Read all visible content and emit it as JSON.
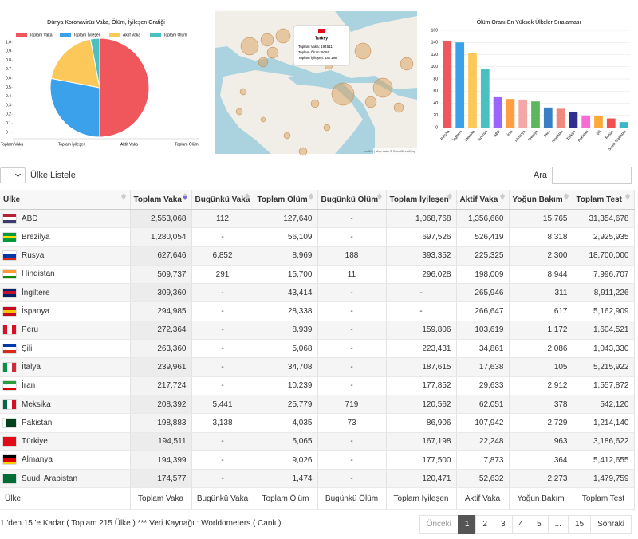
{
  "chart_data": [
    {
      "type": "pie",
      "title": "Dünya Koronavirüs Vaka, Ölüm, İyileşen Grafiği",
      "categories": [
        "Toplam Vaka",
        "Toplam İyileşen",
        "Aktif Vaka",
        "Toplam Ölüm"
      ],
      "values": [
        50,
        28,
        19,
        3
      ],
      "colors": [
        "#f0575c",
        "#3aa1ea",
        "#fdc85a",
        "#4bc0c0"
      ],
      "ylim": [
        0,
        1
      ],
      "yticks": [
        0,
        0.1,
        0.2,
        0.3,
        0.4,
        0.5,
        0.6,
        0.7,
        0.8,
        0.9,
        {
          "value": 1,
          "label": "1.0"
        }
      ]
    },
    {
      "type": "bar",
      "title": "Ölüm Oranı En Yüksek Ülkeler Sıralaması",
      "categories": [
        "Belçika",
        "İngiltere",
        "Meksika",
        "İspanya",
        "ABD",
        "İran",
        "Almanya",
        "Brezilya",
        "Peru",
        "Hindistan",
        "Türkiye",
        "Pakistan",
        "Şili",
        "Rusya",
        "Suudi Arabistan"
      ],
      "values": [
        143,
        140,
        123,
        96,
        50,
        47,
        46,
        43,
        33,
        31,
        26,
        20,
        19,
        15,
        9
      ],
      "colors": [
        "#f0575c",
        "#3aa1ea",
        "#fdc85a",
        "#4bc0c0",
        "#9966ff",
        "#ff9f40",
        "#f4a7a7",
        "#5cb85c",
        "#3a7fc1",
        "#f08a80",
        "#2e2f8f",
        "#f76dd7",
        "#ffa83a",
        "#f05050",
        "#3bb7c9"
      ],
      "ylim": [
        0,
        160
      ],
      "yticks": [
        0,
        20,
        40,
        60,
        80,
        100,
        120,
        140,
        160
      ],
      "grid": true
    }
  ],
  "map": {
    "popup": {
      "title": "Turkey",
      "lines": [
        "Toplam Vaka: 194511",
        "Toplam Ölüm: 5065",
        "Toplam İyileşen: 167198"
      ]
    },
    "attribution": "Leaflet | Map data © OpenStreetMap"
  },
  "controls": {
    "list_label": "Ülke Listele",
    "search_label": "Ara"
  },
  "table": {
    "headers": [
      "Ülke",
      "Toplam Vaka",
      "Bugünkü Vaka",
      "Toplam Ölüm",
      "Bugünkü Ölüm",
      "Toplam İyileşen",
      "Aktif Vaka",
      "Yoğun Bakım",
      "Toplam Test"
    ],
    "rows": [
      [
        "ABD",
        "2,553,068",
        "112",
        "127,640",
        "-",
        "1,068,768",
        "1,356,660",
        "15,765",
        "31,354,678"
      ],
      [
        "Brezilya",
        "1,280,054",
        "-",
        "56,109",
        "-",
        "697,526",
        "526,419",
        "8,318",
        "2,925,935"
      ],
      [
        "Rusya",
        "627,646",
        "6,852",
        "8,969",
        "188",
        "393,352",
        "225,325",
        "2,300",
        "18,700,000"
      ],
      [
        "Hindistan",
        "509,737",
        "291",
        "15,700",
        "11",
        "296,028",
        "198,009",
        "8,944",
        "7,996,707"
      ],
      [
        "İngiltere",
        "309,360",
        "-",
        "43,414",
        "-",
        "-",
        "265,946",
        "311",
        "8,911,226"
      ],
      [
        "İspanya",
        "294,985",
        "-",
        "28,338",
        "-",
        "-",
        "266,647",
        "617",
        "5,162,909"
      ],
      [
        "Peru",
        "272,364",
        "-",
        "8,939",
        "-",
        "159,806",
        "103,619",
        "1,172",
        "1,604,521"
      ],
      [
        "Şili",
        "263,360",
        "-",
        "5,068",
        "-",
        "223,431",
        "34,861",
        "2,086",
        "1,043,330"
      ],
      [
        "İtalya",
        "239,961",
        "-",
        "34,708",
        "-",
        "187,615",
        "17,638",
        "105",
        "5,215,922"
      ],
      [
        "İran",
        "217,724",
        "-",
        "10,239",
        "-",
        "177,852",
        "29,633",
        "2,912",
        "1,557,872"
      ],
      [
        "Meksika",
        "208,392",
        "5,441",
        "25,779",
        "719",
        "120,562",
        "62,051",
        "378",
        "542,120"
      ],
      [
        "Pakistan",
        "198,883",
        "3,138",
        "4,035",
        "73",
        "86,906",
        "107,942",
        "2,729",
        "1,214,140"
      ],
      [
        "Türkiye",
        "194,511",
        "-",
        "5,065",
        "-",
        "167,198",
        "22,248",
        "963",
        "3,186,622"
      ],
      [
        "Almanya",
        "194,399",
        "-",
        "9,026",
        "-",
        "177,500",
        "7,873",
        "364",
        "5,412,655"
      ],
      [
        "Suudi Arabistan",
        "174,577",
        "-",
        "1,474",
        "-",
        "120,471",
        "52,632",
        "2,273",
        "1,479,759"
      ]
    ],
    "footer": [
      "Ülke",
      "Toplam Vaka",
      "Bugünkü Vaka",
      "Toplam Ölüm",
      "Bugünkü Ölüm",
      "Toplam İyileşen",
      "Aktif Vaka",
      "Yoğun Bakım",
      "Toplam Test"
    ]
  },
  "info": "1 'den 15 'e Kadar ( Toplam 215 Ülke ) *** Veri Kaynağı : Worldometers ( Canlı )",
  "pagination": [
    "Önceki",
    "1",
    "2",
    "3",
    "4",
    "5",
    "...",
    "15",
    "Sonraki"
  ]
}
